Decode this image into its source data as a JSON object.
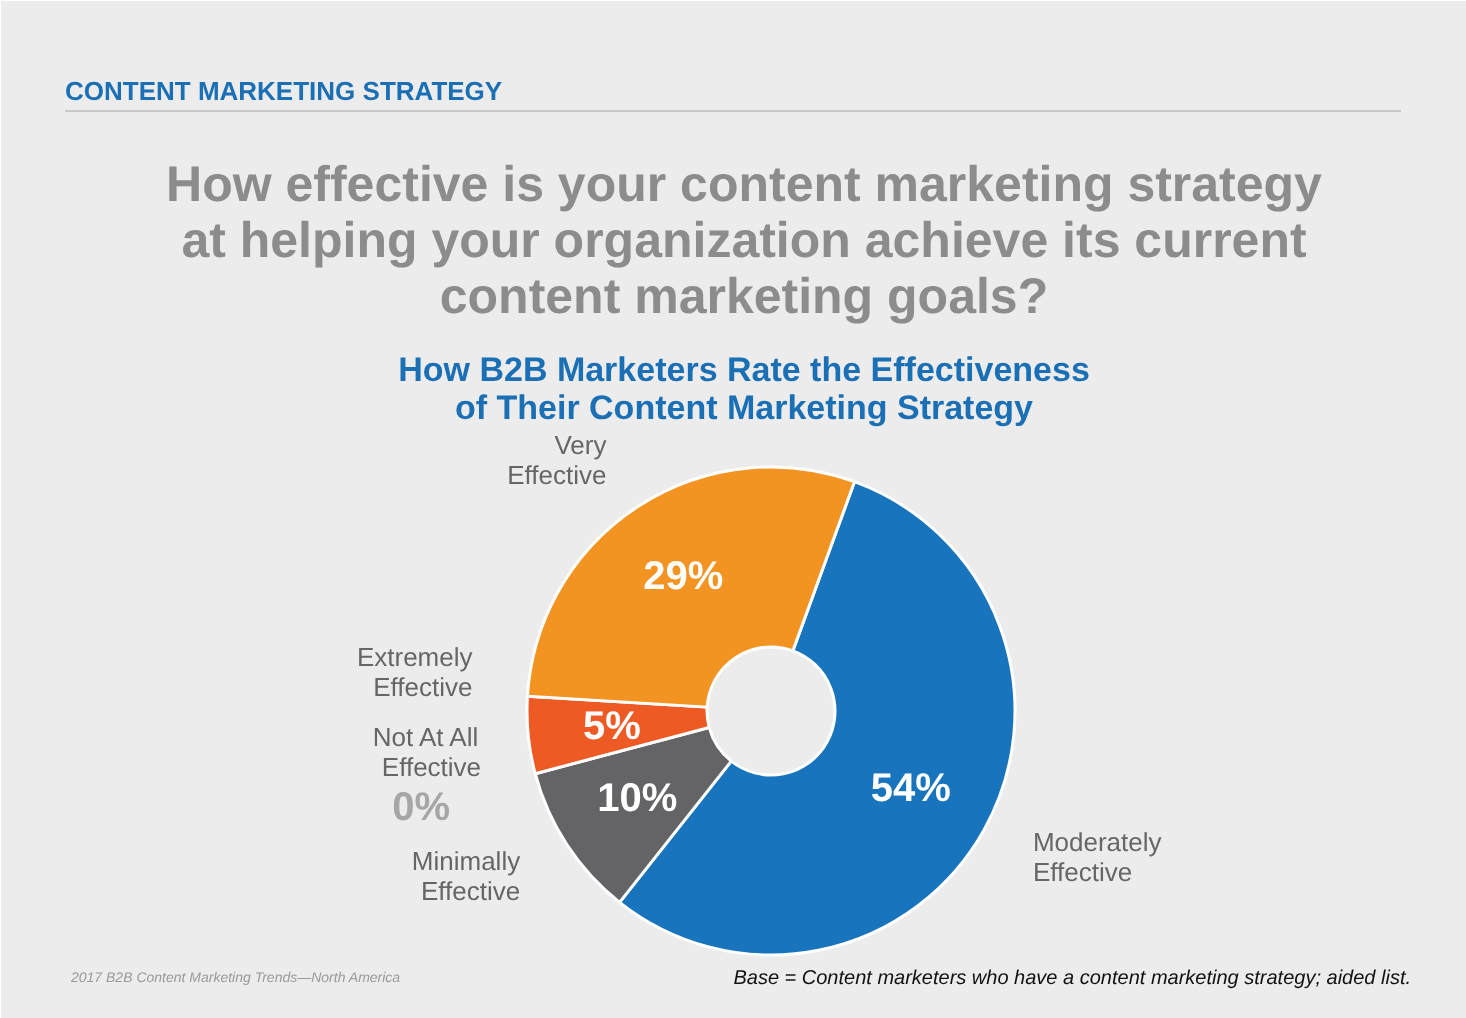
{
  "chart_data": {
    "type": "donut",
    "title": "How effective is your content marketing strategy at helping your organization achieve its current content marketing goals?",
    "subtitle": "How B2B Marketers Rate the Effectiveness of Their Content Marketing Strategy",
    "annotations": [
      "CONTENT MARKETING STRATEGY",
      "2017 B2B Content Marketing Trends—North America",
      "Base = Content marketers who have a content marketing strategy; aided list."
    ],
    "categories": [
      "Moderately Effective",
      "Minimally Effective",
      "Not At All Effective",
      "Extremely Effective",
      "Very Effective"
    ],
    "values": [
      54,
      10,
      0,
      5,
      29
    ],
    "value_labels": [
      "54%",
      "10%",
      "0%",
      "5%",
      "29%"
    ],
    "colors": [
      "#1874bd",
      "#646466",
      "#a6a6a6",
      "#ee5a24",
      "#f39322"
    ]
  }
}
